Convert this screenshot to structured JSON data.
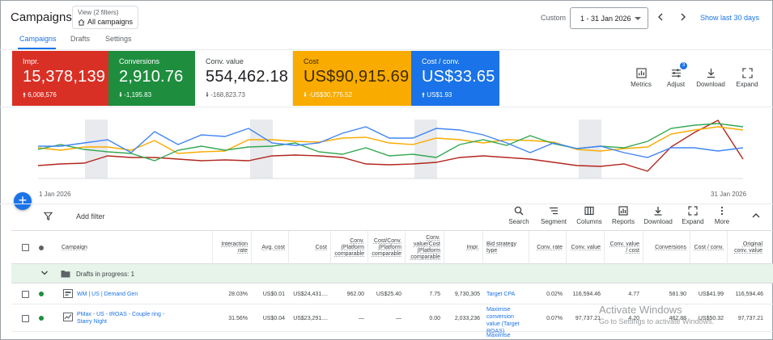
{
  "header": {
    "title": "Campaigns",
    "view_sub": "View (2 filters)",
    "view_main": "All campaigns",
    "custom_label": "Custom",
    "date_range": "1 - 31 Jan 2026",
    "show_last": "Show last 30 days"
  },
  "tabs": [
    {
      "label": "Campaigns",
      "active": true
    },
    {
      "label": "Drafts",
      "active": false
    },
    {
      "label": "Settings",
      "active": false
    }
  ],
  "metrics": [
    {
      "label": "Impr.",
      "value": "15,378,139",
      "delta": "6,008,576",
      "direction": "up",
      "color": "#d93025"
    },
    {
      "label": "Conversions",
      "value": "2,910.76",
      "delta": "-1,195.83",
      "direction": "down",
      "color": "#1e8e3e"
    },
    {
      "label": "Conv. value",
      "value": "554,462.18",
      "delta": "-168,823.73",
      "direction": "down",
      "color": "#ffffff"
    },
    {
      "label": "Cost",
      "value": "US$90,915.69",
      "delta": "-US$30,775.52",
      "direction": "down",
      "color": "#f9ab00"
    },
    {
      "label": "Cost / conv.",
      "value": "US$33.65",
      "delta": "US$1.93",
      "direction": "up",
      "color": "#1a73e8"
    }
  ],
  "chart_tools": {
    "metrics": "Metrics",
    "adjust": "Adjust",
    "adjust_badge": "3",
    "download": "Download",
    "expand": "Expand"
  },
  "chart_data": {
    "type": "line",
    "x_start_label": "1 Jan 2026",
    "x_end_label": "31 Jan 2026",
    "series_colors": {
      "blue": "#4285f4",
      "green": "#34a853",
      "yellow": "#fbbc04",
      "red": "#b3261e"
    },
    "weekend_bands_count": 5
  },
  "table_toolbar": {
    "add_filter": "Add filter",
    "tools": [
      "Search",
      "Segment",
      "Columns",
      "Reports",
      "Download",
      "Expand",
      "More"
    ]
  },
  "table": {
    "columns": [
      "Campaign",
      "Interaction rate",
      "Avg. cost",
      "Cost",
      "Conv. (Platform comparable",
      "Cost/Conv. (Platform comparable",
      "Conv. value/Cost (Platform comparable",
      "Impr.",
      "Bid strategy type",
      "Conv. rate",
      "Conv. value",
      "Conv. value / cost",
      "Conversions",
      "Cost / conv.",
      "Original conv. value"
    ],
    "drafts_label": "Drafts in progress: 1",
    "rows": [
      {
        "campaign": "WM | US | Demand Gen",
        "status_color": "#1e8e3e",
        "interaction_rate": "28.03%",
        "avg_cost": "US$0.01",
        "cost": "US$24,431....",
        "conv_pc": "962.00",
        "cost_conv_pc": "US$25.40",
        "value_cost_pc": "7.75",
        "impr": "9,730,305",
        "bid_strategy": "Target CPA",
        "conv_rate": "0.02%",
        "conv_value": "116,594.46",
        "conv_value_cost": "4.77",
        "conversions": "581.90",
        "cost_conv": "US$41.99",
        "orig_conv_value": "116,594.46"
      },
      {
        "campaign": "PMax - US - tROAS - Couple ring - Starry Night",
        "status_color": "#1e8e3e",
        "interaction_rate": "31.56%",
        "avg_cost": "US$0.04",
        "cost": "US$23,291....",
        "conv_pc": "—",
        "cost_conv_pc": "—",
        "value_cost_pc": "0.00",
        "impr": "2,033,236",
        "bid_strategy": "Maximise conversion value (Target ROAS)",
        "conv_rate": "0.07%",
        "conv_value": "97,737.21",
        "conv_value_cost": "4.20",
        "conversions": "462.88",
        "cost_conv": "US$50.32",
        "orig_conv_value": "97,737.21"
      },
      {
        "bid_strategy": "Maximise"
      }
    ]
  },
  "watermark": {
    "line1": "Activate Windows",
    "line2": "Go to Settings to activate Windows."
  }
}
